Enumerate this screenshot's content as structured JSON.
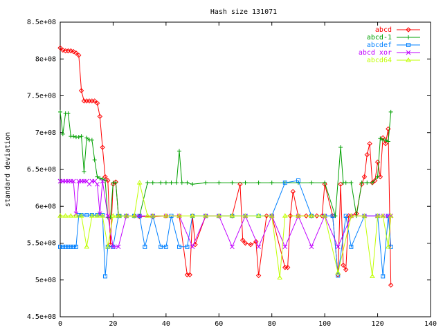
{
  "chart_data": {
    "type": "line",
    "title": "Hash size 131071",
    "xlabel": "",
    "ylabel": "standard deviation",
    "xlim": [
      0,
      140
    ],
    "ylim": [
      450000000,
      850000000
    ],
    "xticks": [
      0,
      20,
      40,
      60,
      80,
      100,
      120,
      140
    ],
    "xtick_labels": [
      "0",
      "20",
      "40",
      "60",
      "80",
      "100",
      "120",
      "140"
    ],
    "yticks": [
      450000000,
      500000000,
      550000000,
      600000000,
      650000000,
      700000000,
      750000000,
      800000000,
      850000000
    ],
    "ytick_labels": [
      "4.5e+08",
      "5e+08",
      "5.5e+08",
      "6e+08",
      "6.5e+08",
      "7e+08",
      "7.5e+08",
      "8e+08",
      "8.5e+08"
    ],
    "grid": false,
    "legend_position": "top-right",
    "series": [
      {
        "name": "abcd",
        "color": "#ff0000",
        "marker": "diamond",
        "x": [
          0,
          1,
          2,
          3,
          4,
          5,
          6,
          7,
          8,
          9,
          10,
          11,
          12,
          13,
          14,
          15,
          16,
          17,
          18,
          19,
          20,
          21,
          22,
          25,
          28,
          30,
          35,
          40,
          45,
          48,
          49,
          50,
          51,
          55,
          60,
          65,
          68,
          69,
          70,
          72,
          74,
          75,
          78,
          80,
          85,
          86,
          87,
          88,
          90,
          93,
          95,
          97,
          99,
          100,
          103,
          105,
          106,
          107,
          108,
          109,
          110,
          112,
          114,
          115,
          116,
          117,
          118,
          119,
          120,
          121,
          122,
          123,
          124,
          125
        ],
        "y": [
          815000000,
          812000000,
          811000000,
          811000000,
          811000000,
          810000000,
          808000000,
          805000000,
          757000000,
          743000000,
          743000000,
          743000000,
          743000000,
          743000000,
          740000000,
          722000000,
          680000000,
          640000000,
          635000000,
          548000000,
          630000000,
          633000000,
          587000000,
          587000000,
          587000000,
          586000000,
          586000000,
          587000000,
          587000000,
          507000000,
          507000000,
          587000000,
          548000000,
          587000000,
          587000000,
          587000000,
          630000000,
          554000000,
          550000000,
          548000000,
          552000000,
          506000000,
          587000000,
          587000000,
          517000000,
          517000000,
          587000000,
          620000000,
          587000000,
          587000000,
          587000000,
          587000000,
          587000000,
          630000000,
          587000000,
          507000000,
          630000000,
          520000000,
          514000000,
          587000000,
          587000000,
          590000000,
          630000000,
          640000000,
          670000000,
          685000000,
          632000000,
          635000000,
          660000000,
          640000000,
          693000000,
          685000000,
          705000000,
          493000000
        ]
      },
      {
        "name": "abcd-1",
        "color": "#00a000",
        "marker": "plus",
        "x": [
          0,
          1,
          2,
          3,
          4,
          5,
          6,
          7,
          8,
          9,
          10,
          11,
          12,
          13,
          14,
          15,
          16,
          17,
          18,
          19,
          20,
          21,
          22,
          23,
          25,
          28,
          30,
          33,
          35,
          38,
          40,
          42,
          44,
          45,
          46,
          48,
          50,
          55,
          60,
          65,
          70,
          75,
          80,
          85,
          90,
          95,
          100,
          104,
          106,
          107,
          108,
          110,
          112,
          114,
          116,
          118,
          120,
          121,
          122,
          123,
          124,
          125
        ],
        "y": [
          728000000,
          698000000,
          726000000,
          726000000,
          695000000,
          695000000,
          694000000,
          694000000,
          695000000,
          647000000,
          693000000,
          690000000,
          690000000,
          663000000,
          640000000,
          638000000,
          637000000,
          635000000,
          585000000,
          585000000,
          632000000,
          632000000,
          587000000,
          587000000,
          587000000,
          587000000,
          587000000,
          632000000,
          632000000,
          632000000,
          632000000,
          632000000,
          632000000,
          675000000,
          632000000,
          632000000,
          630000000,
          632000000,
          632000000,
          632000000,
          632000000,
          632000000,
          632000000,
          632000000,
          632000000,
          632000000,
          632000000,
          587000000,
          680000000,
          632000000,
          632000000,
          632000000,
          587000000,
          632000000,
          632000000,
          632000000,
          640000000,
          692000000,
          690000000,
          690000000,
          688000000,
          728000000
        ]
      },
      {
        "name": "abcdef",
        "color": "#0080ff",
        "marker": "square",
        "x": [
          0,
          1,
          2,
          3,
          4,
          5,
          6,
          7,
          8,
          10,
          12,
          14,
          16,
          17,
          18,
          20,
          22,
          25,
          28,
          30,
          32,
          35,
          38,
          40,
          42,
          45,
          48,
          50,
          55,
          60,
          65,
          70,
          75,
          80,
          85,
          90,
          95,
          100,
          103,
          105,
          108,
          110,
          115,
          120,
          122,
          124,
          125
        ],
        "y": [
          545000000,
          545000000,
          545000000,
          545000000,
          545000000,
          545000000,
          545000000,
          588000000,
          588000000,
          588000000,
          588000000,
          588000000,
          588000000,
          505000000,
          545000000,
          545000000,
          587000000,
          587000000,
          587000000,
          587000000,
          545000000,
          587000000,
          545000000,
          545000000,
          587000000,
          545000000,
          545000000,
          587000000,
          587000000,
          587000000,
          587000000,
          587000000,
          587000000,
          587000000,
          632000000,
          635000000,
          587000000,
          587000000,
          587000000,
          506000000,
          587000000,
          545000000,
          587000000,
          587000000,
          505000000,
          587000000,
          545000000
        ]
      },
      {
        "name": "abcd xor",
        "color": "#c000ff",
        "marker": "x",
        "x": [
          0,
          1,
          2,
          3,
          4,
          5,
          6,
          7,
          8,
          9,
          10,
          11,
          12,
          13,
          14,
          15,
          16,
          18,
          20,
          22,
          25,
          30,
          35,
          40,
          45,
          50,
          55,
          60,
          65,
          70,
          75,
          80,
          85,
          90,
          95,
          100,
          105,
          110,
          115,
          120,
          122,
          124,
          125
        ],
        "y": [
          634000000,
          634000000,
          634000000,
          634000000,
          634000000,
          634000000,
          590000000,
          634000000,
          634000000,
          634000000,
          634000000,
          630000000,
          634000000,
          634000000,
          630000000,
          590000000,
          634000000,
          587000000,
          545000000,
          545000000,
          587000000,
          587000000,
          587000000,
          587000000,
          587000000,
          545000000,
          587000000,
          587000000,
          545000000,
          587000000,
          545000000,
          587000000,
          545000000,
          587000000,
          545000000,
          587000000,
          545000000,
          587000000,
          587000000,
          587000000,
          587000000,
          587000000,
          587000000
        ]
      },
      {
        "name": "abcd64",
        "color": "#c0ff00",
        "marker": "triangle",
        "x": [
          0,
          2,
          4,
          6,
          8,
          10,
          12,
          14,
          16,
          18,
          20,
          22,
          25,
          28,
          30,
          33,
          35,
          40,
          45,
          50,
          55,
          60,
          65,
          70,
          75,
          80,
          83,
          85,
          90,
          95,
          100,
          105,
          110,
          115,
          118,
          120,
          122,
          124,
          125
        ],
        "y": [
          587000000,
          587000000,
          587000000,
          587000000,
          587000000,
          545000000,
          587000000,
          587000000,
          587000000,
          545000000,
          587000000,
          587000000,
          587000000,
          587000000,
          632000000,
          587000000,
          587000000,
          587000000,
          587000000,
          587000000,
          587000000,
          587000000,
          587000000,
          587000000,
          587000000,
          587000000,
          503000000,
          587000000,
          587000000,
          587000000,
          587000000,
          510000000,
          587000000,
          587000000,
          505000000,
          587000000,
          587000000,
          545000000,
          587000000
        ]
      }
    ]
  }
}
